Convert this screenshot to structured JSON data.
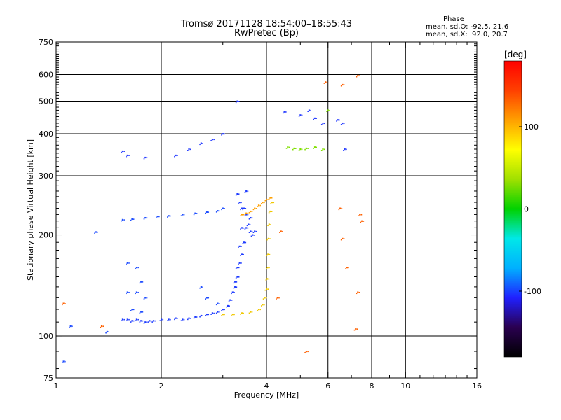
{
  "header": {
    "title_line1": "Tromsø 20171128 18:54:00–18:55:43",
    "title_line2": "RwPretec (Bp)",
    "phase_heading": "Phase",
    "phase_o": "mean, sd,O: -92.5, 21.6",
    "phase_x": "mean, sd,X:  92.0, 20.7"
  },
  "chart_data": {
    "type": "scatter",
    "xlabel": "Frequency [MHz]",
    "ylabel": "Stationary phase Virtual Height [km]",
    "x_scale": "log",
    "y_scale": "log",
    "xlim": [
      1,
      16
    ],
    "ylim": [
      75,
      750
    ],
    "x_ticks": [
      1,
      2,
      4,
      6,
      8,
      10,
      16
    ],
    "x_minor_ticks": [
      3,
      5,
      7,
      9,
      11,
      12,
      13,
      14,
      15
    ],
    "y_ticks": [
      75,
      100,
      200,
      300,
      400,
      500,
      600,
      750
    ],
    "grid": true,
    "x_grid": [
      2,
      4,
      6,
      8,
      10
    ],
    "y_grid": [
      100,
      200,
      300,
      400,
      500,
      600
    ],
    "colorbar": {
      "title": "[deg]",
      "range": [
        -180,
        180
      ],
      "ticks": [
        -100,
        0,
        100
      ],
      "stops": [
        "#000000",
        "#2a0050",
        "#2020ff",
        "#00b0ff",
        "#00e8e8",
        "#00d200",
        "#a0e000",
        "#ffff00",
        "#ffa000",
        "#ff4000",
        "#ff0000"
      ]
    },
    "series": [
      {
        "id": "o_trace",
        "color": "#1e3cff",
        "points": [
          [
            1.55,
            112
          ],
          [
            1.6,
            112
          ],
          [
            1.65,
            111
          ],
          [
            1.7,
            112
          ],
          [
            1.75,
            111
          ],
          [
            1.8,
            110
          ],
          [
            1.85,
            111
          ],
          [
            1.9,
            111
          ],
          [
            2.0,
            112
          ],
          [
            2.1,
            112
          ],
          [
            2.2,
            113
          ],
          [
            2.3,
            112
          ],
          [
            2.4,
            113
          ],
          [
            2.5,
            114
          ],
          [
            2.6,
            115
          ],
          [
            2.7,
            116
          ],
          [
            2.8,
            117
          ],
          [
            2.9,
            118
          ],
          [
            3.0,
            120
          ],
          [
            3.1,
            123
          ],
          [
            3.15,
            128
          ],
          [
            3.2,
            135
          ],
          [
            3.25,
            145
          ],
          [
            3.3,
            160
          ],
          [
            3.35,
            185
          ],
          [
            3.4,
            210
          ],
          [
            3.45,
            240
          ],
          [
            3.5,
            270
          ]
        ]
      },
      {
        "id": "o_f2",
        "color": "#1e3cff",
        "points": [
          [
            3.3,
            265
          ],
          [
            3.35,
            250
          ],
          [
            3.4,
            240
          ],
          [
            3.5,
            230
          ],
          [
            3.55,
            215
          ],
          [
            3.6,
            205
          ],
          [
            3.65,
            200
          ],
          [
            3.7,
            205
          ],
          [
            3.6,
            225
          ],
          [
            3.5,
            210
          ],
          [
            3.45,
            190
          ],
          [
            3.4,
            175
          ],
          [
            3.35,
            165
          ],
          [
            3.3,
            150
          ],
          [
            3.25,
            140
          ]
        ]
      },
      {
        "id": "o_f1",
        "color": "#2050ff",
        "points": [
          [
            1.55,
            222
          ],
          [
            1.65,
            223
          ],
          [
            1.8,
            225
          ],
          [
            1.95,
            227
          ],
          [
            2.1,
            228
          ],
          [
            2.3,
            230
          ],
          [
            2.5,
            232
          ],
          [
            2.7,
            234
          ],
          [
            2.9,
            236
          ],
          [
            3.0,
            240
          ]
        ]
      },
      {
        "id": "o_upper",
        "color": "#2a40ff",
        "points": [
          [
            1.55,
            355
          ],
          [
            1.6,
            345
          ],
          [
            1.8,
            340
          ],
          [
            2.2,
            345
          ],
          [
            2.4,
            360
          ],
          [
            2.6,
            375
          ],
          [
            2.8,
            385
          ],
          [
            3.0,
            400
          ],
          [
            3.3,
            500
          ],
          [
            4.5,
            465
          ],
          [
            5.0,
            455
          ],
          [
            5.3,
            470
          ],
          [
            5.5,
            445
          ],
          [
            5.8,
            430
          ],
          [
            6.4,
            440
          ],
          [
            6.6,
            430
          ],
          [
            6.7,
            360
          ]
        ]
      },
      {
        "id": "o_low",
        "color": "#1e4cff",
        "points": [
          [
            1.6,
            165
          ],
          [
            1.7,
            160
          ],
          [
            1.75,
            145
          ],
          [
            1.6,
            135
          ],
          [
            1.7,
            135
          ],
          [
            1.8,
            130
          ],
          [
            1.65,
            120
          ],
          [
            1.75,
            118
          ],
          [
            2.6,
            140
          ],
          [
            2.7,
            130
          ],
          [
            2.9,
            125
          ],
          [
            1.3,
            204
          ],
          [
            1.1,
            107
          ],
          [
            1.05,
            84
          ],
          [
            1.4,
            103
          ]
        ]
      },
      {
        "id": "x_trace",
        "color": "#f0c800",
        "points": [
          [
            3.0,
            116
          ],
          [
            3.2,
            116
          ],
          [
            3.4,
            117
          ],
          [
            3.6,
            118
          ],
          [
            3.8,
            120
          ],
          [
            3.9,
            124
          ],
          [
            3.95,
            130
          ],
          [
            4.0,
            138
          ],
          [
            4.02,
            148
          ],
          [
            4.03,
            160
          ],
          [
            4.04,
            175
          ],
          [
            4.05,
            195
          ],
          [
            4.07,
            215
          ],
          [
            4.1,
            235
          ],
          [
            4.15,
            250
          ]
        ]
      },
      {
        "id": "x_f2",
        "color": "#ffa000",
        "points": [
          [
            3.7,
            240
          ],
          [
            3.8,
            245
          ],
          [
            3.9,
            250
          ],
          [
            4.0,
            255
          ],
          [
            4.1,
            258
          ],
          [
            3.6,
            235
          ],
          [
            3.5,
            232
          ],
          [
            3.4,
            230
          ]
        ]
      },
      {
        "id": "x_upper",
        "color": "#80e000",
        "points": [
          [
            4.6,
            365
          ],
          [
            4.8,
            362
          ],
          [
            5.0,
            360
          ],
          [
            5.2,
            362
          ],
          [
            5.5,
            365
          ],
          [
            5.8,
            360
          ],
          [
            6.0,
            470
          ]
        ]
      },
      {
        "id": "scattered",
        "color": "#ff6000",
        "points": [
          [
            6.5,
            240
          ],
          [
            6.6,
            195
          ],
          [
            6.8,
            160
          ],
          [
            7.4,
            230
          ],
          [
            7.5,
            220
          ],
          [
            7.3,
            135
          ],
          [
            7.2,
            105
          ],
          [
            7.3,
            596
          ],
          [
            5.9,
            570
          ],
          [
            6.6,
            560
          ],
          [
            5.2,
            90
          ],
          [
            4.4,
            205
          ],
          [
            4.3,
            130
          ],
          [
            1.05,
            125
          ],
          [
            1.35,
            107
          ]
        ]
      }
    ]
  }
}
